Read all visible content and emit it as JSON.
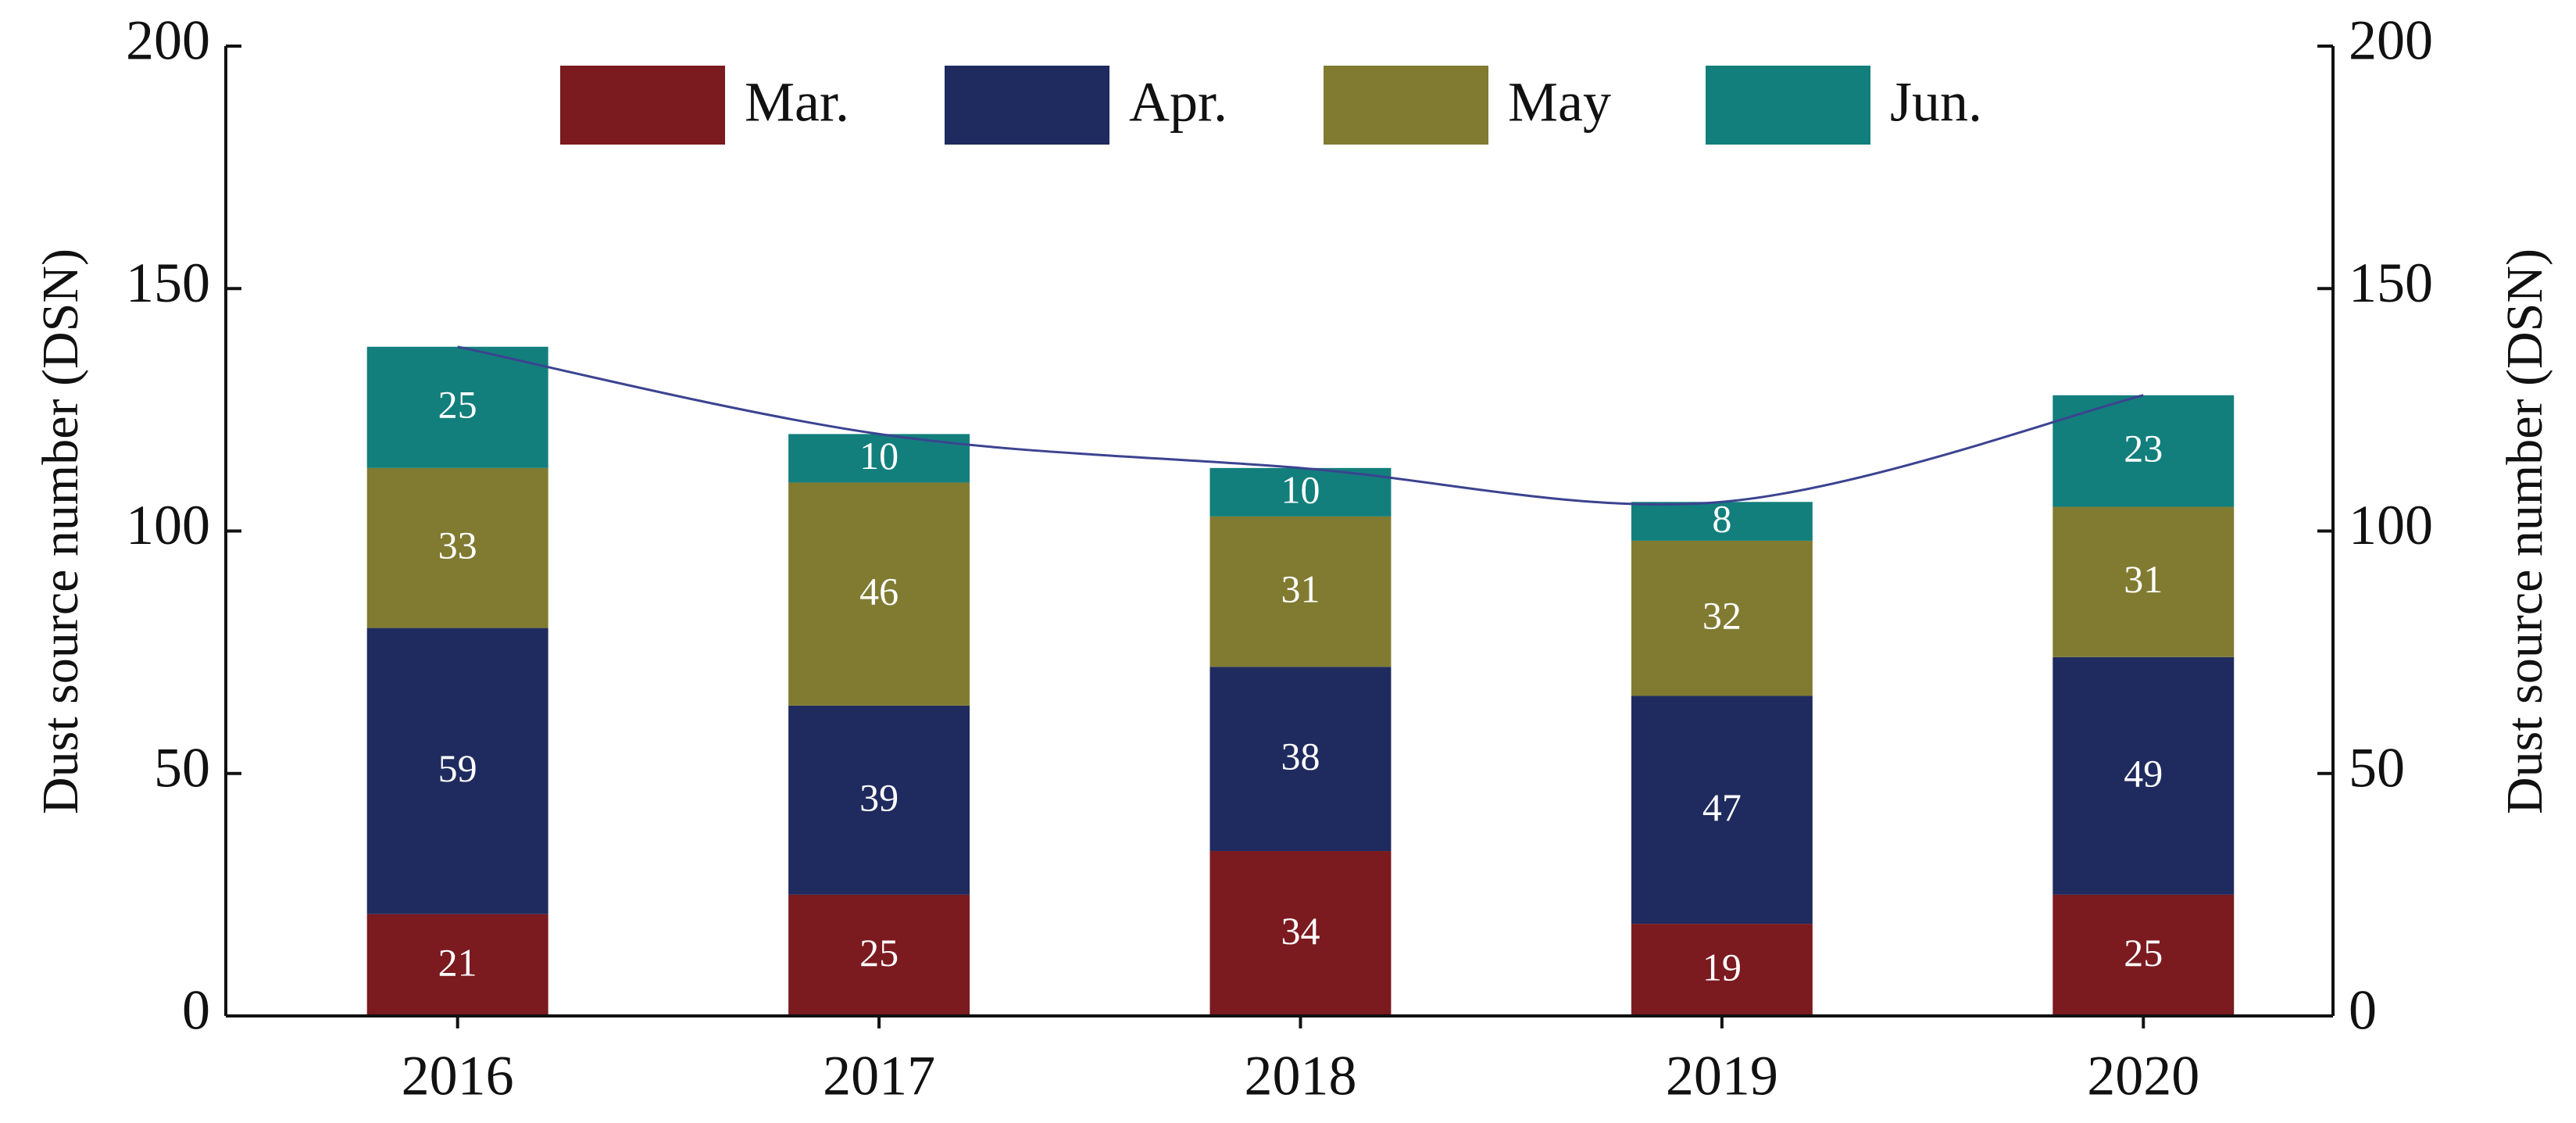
{
  "chart_data": {
    "type": "bar",
    "stacked": true,
    "y_label": "Dust source number (DSN)",
    "y2_label": "Dust source number (DSN)",
    "categories": [
      "2016",
      "2017",
      "2018",
      "2019",
      "2020"
    ],
    "series": [
      {
        "name": "Mar.",
        "color": "#7b1a1f",
        "values": [
          21,
          25,
          34,
          19,
          25
        ]
      },
      {
        "name": "Apr.",
        "color": "#1f2b5e",
        "values": [
          59,
          39,
          38,
          47,
          49
        ]
      },
      {
        "name": "May",
        "color": "#807b31",
        "values": [
          33,
          46,
          31,
          32,
          31
        ]
      },
      {
        "name": "Jun.",
        "color": "#127f7c",
        "values": [
          25,
          10,
          10,
          8,
          23
        ]
      },
      {
        "type": "line",
        "axis": "y2",
        "color": "#3b4390",
        "values": [
          138,
          120,
          113,
          106,
          128
        ]
      }
    ],
    "ylim": [
      0,
      200
    ],
    "yticks": [
      0,
      50,
      100,
      150,
      200
    ],
    "y2lim": [
      0,
      200
    ],
    "y2ticks": [
      0,
      50,
      100,
      150,
      200
    ],
    "legend": "top"
  }
}
